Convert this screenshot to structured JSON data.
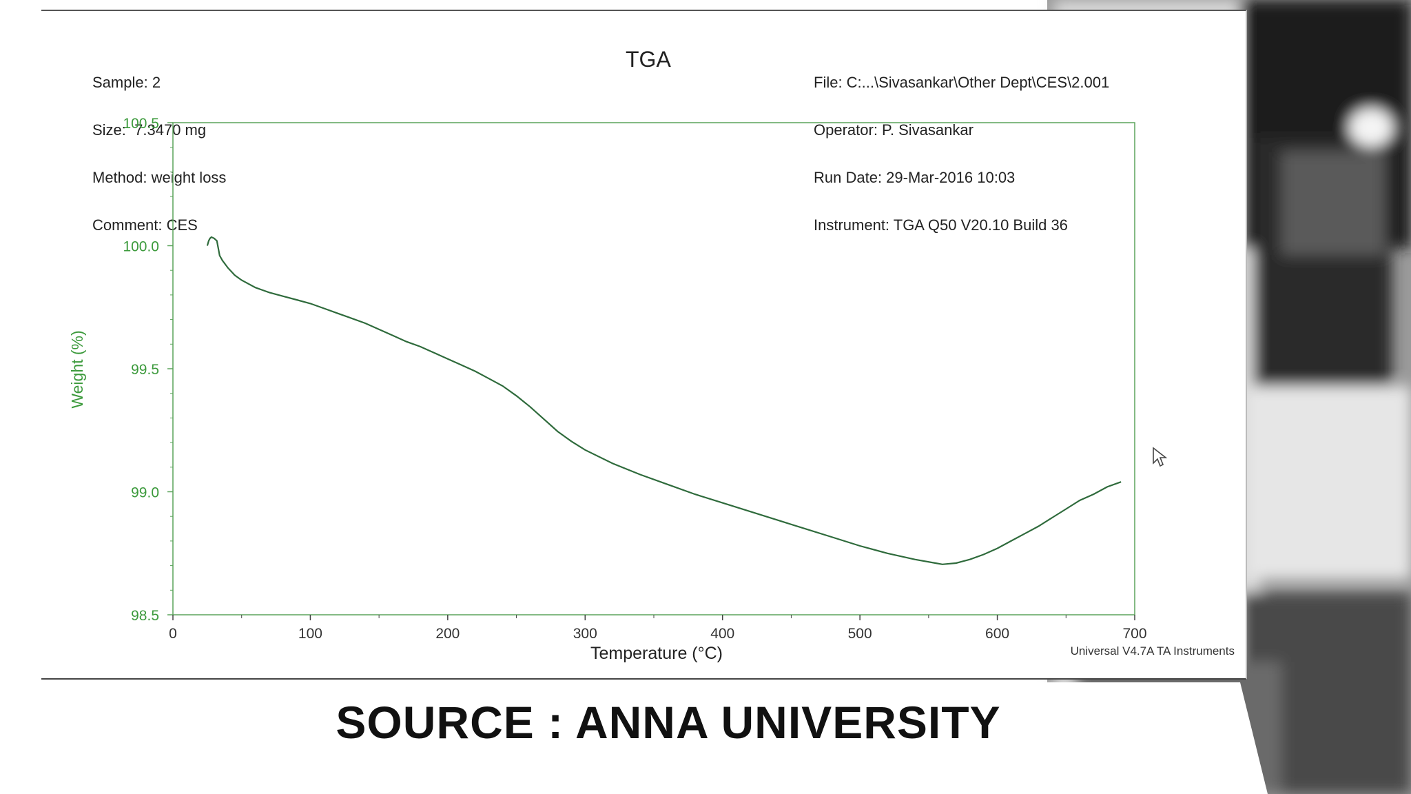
{
  "header": {
    "left": [
      "Sample: 2",
      "Size:  7.3470 mg",
      "Method: weight loss",
      "Comment: CES"
    ],
    "right": [
      "File: C:...\\Sivasankar\\Other Dept\\CES\\2.001",
      "Operator: P. Sivasankar",
      "Run Date: 29-Mar-2016 10:03",
      "Instrument: TGA Q50 V20.10 Build 36"
    ]
  },
  "footer_note": "Universal V4.7A TA Instruments",
  "source_caption": "SOURCE : ANNA UNIVERSITY",
  "colors": {
    "curve": "#2f6b3c",
    "axis_text": "#3c9a3c",
    "axis_line": "#5aa35a"
  },
  "chart_data": {
    "type": "line",
    "title": "TGA",
    "xlabel": "Temperature (°C)",
    "ylabel": "Weight (%)",
    "xlim": [
      0,
      700
    ],
    "ylim": [
      98.5,
      100.5
    ],
    "x_ticks": [
      "0",
      "100",
      "200",
      "300",
      "400",
      "500",
      "600",
      "700"
    ],
    "y_ticks": [
      "98.5",
      "99.0",
      "99.5",
      "100.0",
      "100.5"
    ],
    "grid": false,
    "series": [
      {
        "x": [
          25,
          26,
          27,
          28,
          30,
          32,
          33,
          34,
          36,
          40,
          45,
          50,
          60,
          70,
          80,
          90,
          100,
          110,
          120,
          130,
          140,
          150,
          160,
          170,
          180,
          190,
          200,
          210,
          220,
          230,
          240,
          250,
          260,
          270,
          280,
          290,
          300,
          320,
          340,
          360,
          380,
          400,
          420,
          440,
          460,
          480,
          500,
          520,
          540,
          555,
          560,
          570,
          580,
          590,
          600,
          610,
          620,
          630,
          640,
          650,
          660,
          670,
          680,
          690
        ],
        "y": [
          100.0,
          100.02,
          100.03,
          100.035,
          100.03,
          100.02,
          99.99,
          99.96,
          99.94,
          99.91,
          99.88,
          99.86,
          99.83,
          99.81,
          99.795,
          99.78,
          99.765,
          99.745,
          99.725,
          99.705,
          99.685,
          99.66,
          99.635,
          99.61,
          99.59,
          99.565,
          99.54,
          99.515,
          99.49,
          99.46,
          99.43,
          99.39,
          99.345,
          99.295,
          99.245,
          99.205,
          99.17,
          99.115,
          99.07,
          99.03,
          98.99,
          98.955,
          98.92,
          98.885,
          98.85,
          98.815,
          98.78,
          98.75,
          98.725,
          98.71,
          98.705,
          98.71,
          98.725,
          98.745,
          98.77,
          98.8,
          98.83,
          98.86,
          98.895,
          98.93,
          98.965,
          98.99,
          99.02,
          99.04
        ]
      }
    ]
  }
}
